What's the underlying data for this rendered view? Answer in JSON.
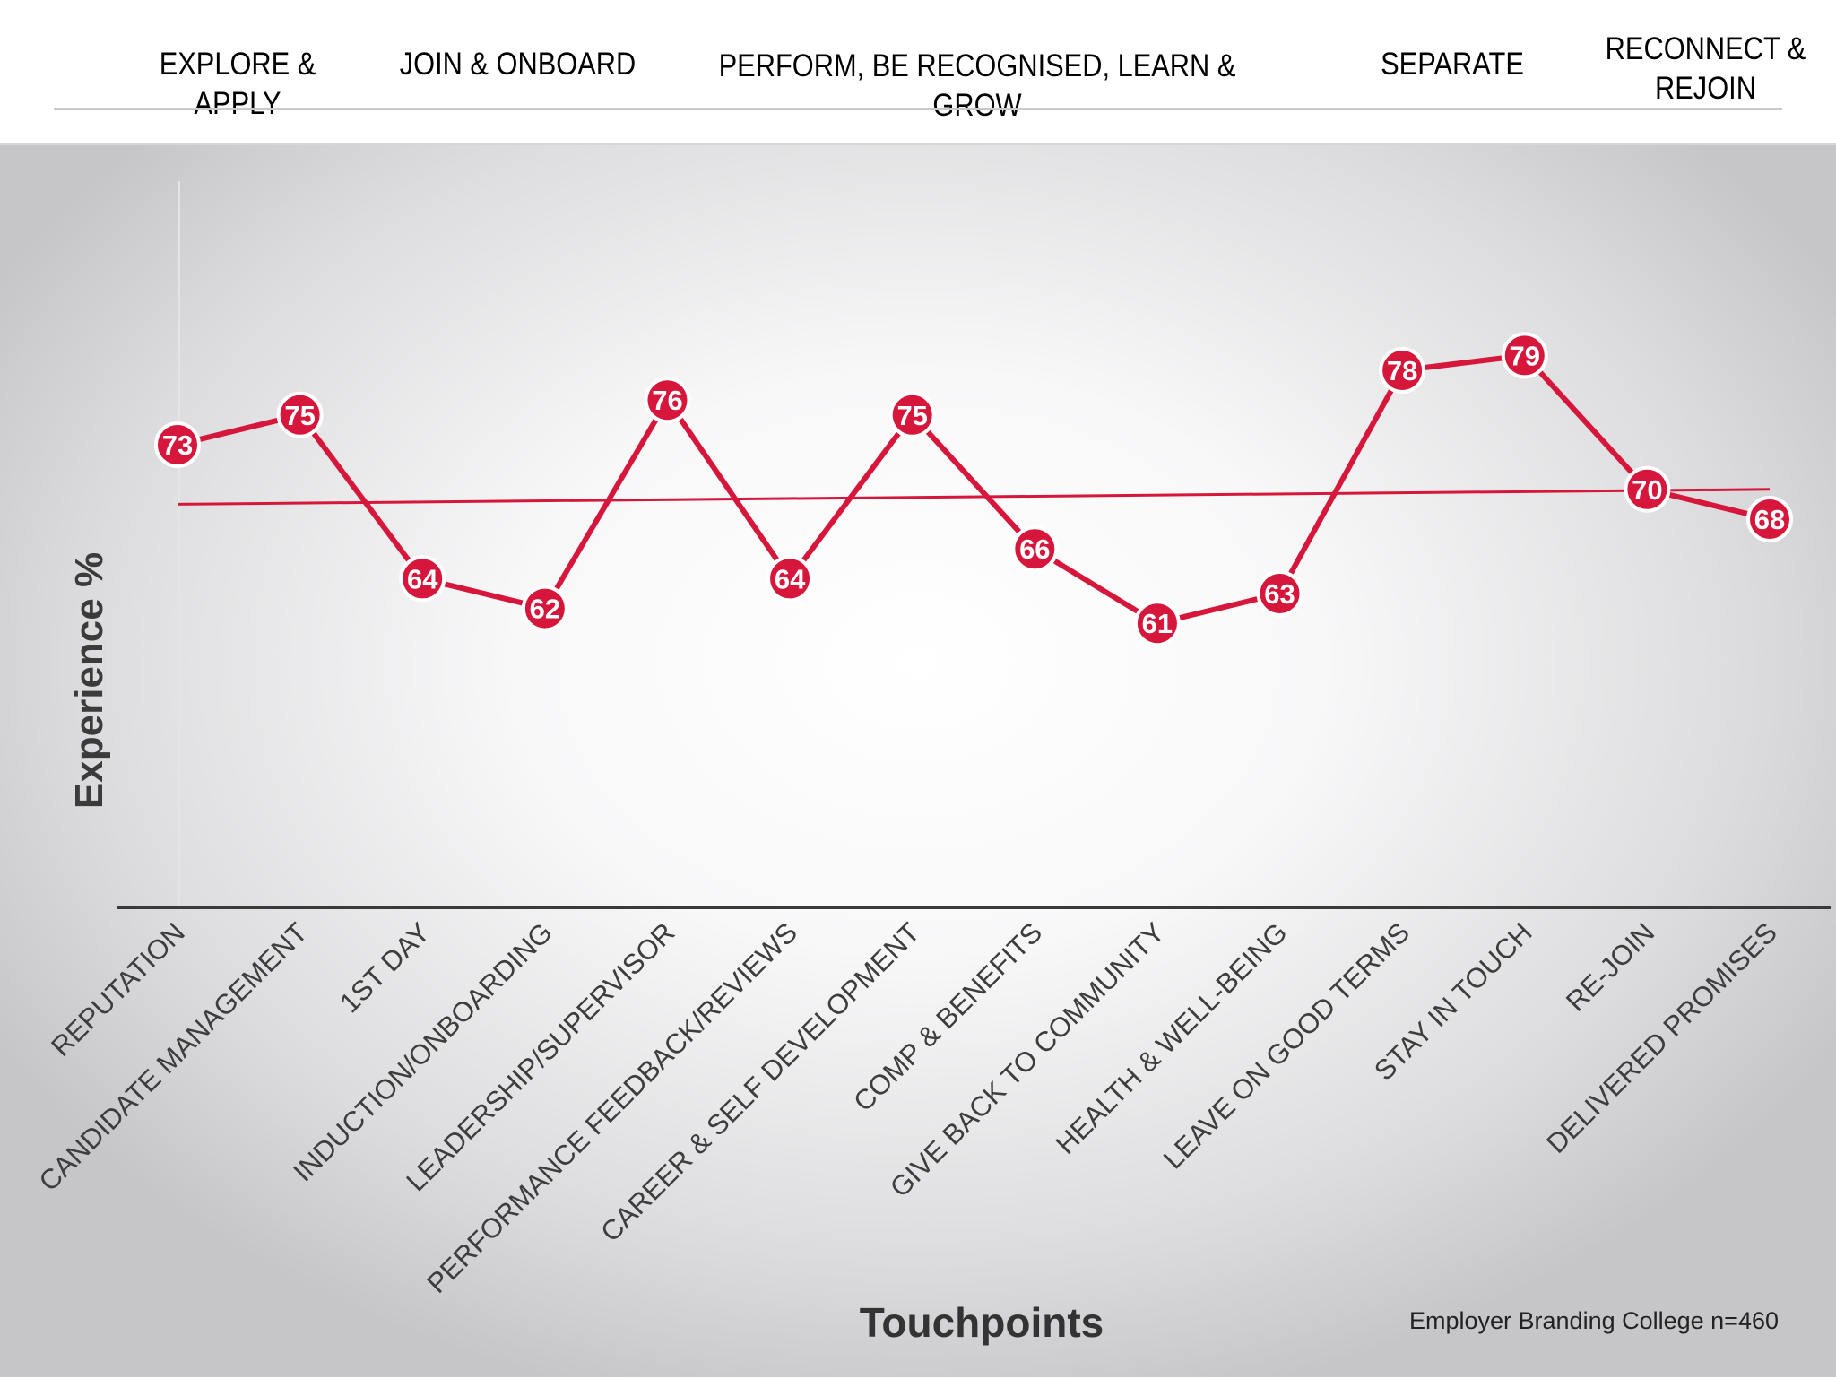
{
  "header": {
    "stages": [
      {
        "label": "EXPLORE & APPLY",
        "color": "#838383"
      },
      {
        "label": "JOIN & ONBOARD",
        "color": "#173a8c"
      },
      {
        "label": "PERFORM, BE RECOGNISED, LEARN & GROW",
        "color": "#838383"
      },
      {
        "label": "SEPARATE",
        "color": "#173a8c"
      },
      {
        "label": "RECONNECT & REJOIN",
        "color": "#838383"
      }
    ]
  },
  "chart_data": {
    "type": "line",
    "title": "",
    "xlabel": "Touchpoints",
    "ylabel": "Experience %",
    "categories": [
      "REPUTATION",
      "CANDIDATE MANAGEMENT",
      "1ST DAY",
      "INDUCTION/ONBOARDING",
      "LEADERSHIP/SUPERVISOR",
      "PERFORMANCE FEEDBACK/REVIEWS",
      "CAREER & SELF DEVELOPMENT",
      "COMP & BENEFITS",
      "GIVE BACK TO COMMUNITY",
      "HEALTH & WELL-BEING",
      "LEAVE ON GOOD TERMS",
      "STAY IN TOUCH",
      "RE-JOIN",
      "DELIVERED PROMISES"
    ],
    "series": [
      {
        "values": [
          73,
          75,
          64,
          62,
          76,
          64,
          75,
          66,
          61,
          63,
          78,
          79,
          70,
          68
        ],
        "color": "#d6163a"
      }
    ],
    "trendline": {
      "shown": true,
      "start": 69,
      "end": 70,
      "color": "#d6163a"
    },
    "data_labels": true,
    "grid": false,
    "legend": "none"
  },
  "source": "Employer Branding College n=460"
}
